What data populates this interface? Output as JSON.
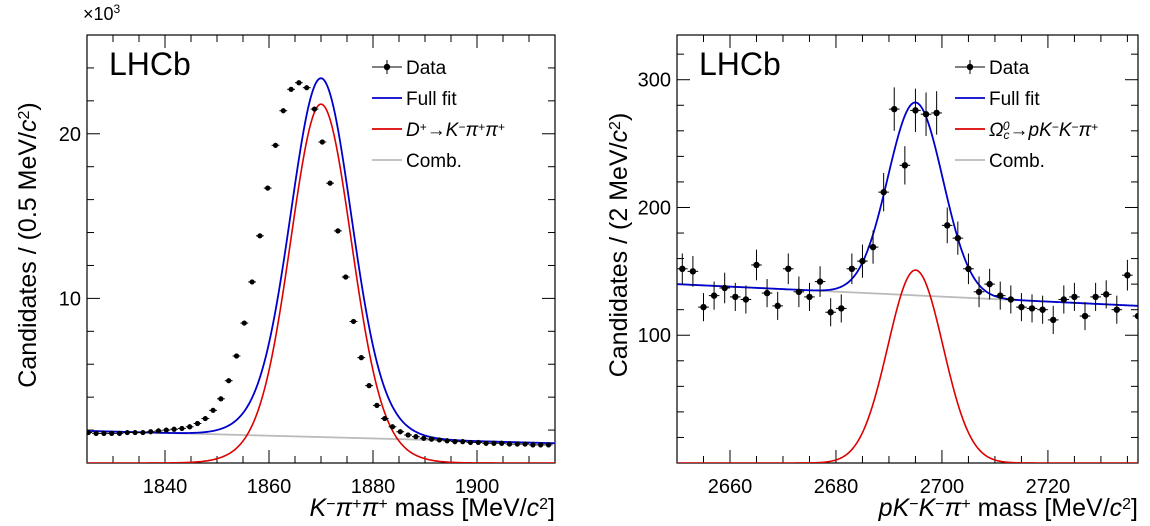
{
  "chart_data": [
    {
      "type": "line",
      "experiment_label": "LHCb",
      "multiplier_label": "×10",
      "multiplier_exp": "3",
      "ylabel_parts": [
        "Candidates / (0.5 MeV/",
        "c",
        "2",
        ")"
      ],
      "xlabel_parts": [
        {
          "t": "K",
          "s": "italic"
        },
        {
          "t": "−",
          "s": "sup"
        },
        {
          "t": "π",
          "s": "italic"
        },
        {
          "t": "+",
          "s": "sup"
        },
        {
          "t": "π",
          "s": "italic"
        },
        {
          "t": "+",
          "s": "sup"
        },
        {
          "t": " mass [MeV/",
          "s": "normal"
        },
        {
          "t": "c",
          "s": "italic"
        },
        {
          "t": "2",
          "s": "sup"
        },
        {
          "t": "]",
          "s": "normal"
        }
      ],
      "xlim": [
        1825,
        1915
      ],
      "ylim": [
        0,
        26000
      ],
      "xticks": [
        1840,
        1860,
        1880,
        1900
      ],
      "yticks": [
        10000,
        20000
      ],
      "ytick_labels": [
        "10",
        "20"
      ],
      "legend_position": "top-right",
      "legend": [
        {
          "kind": "data",
          "parts": [
            {
              "t": "Data",
              "s": "normal"
            }
          ]
        },
        {
          "kind": "line",
          "color": "#0000cc",
          "parts": [
            {
              "t": "Full fit",
              "s": "normal"
            }
          ]
        },
        {
          "kind": "line",
          "color": "#dd0000",
          "parts": [
            {
              "t": "D",
              "s": "italic"
            },
            {
              "t": "+",
              "s": "sup"
            },
            {
              "t": "→",
              "s": "normal"
            },
            {
              "t": "K",
              "s": "italic"
            },
            {
              "t": "−",
              "s": "sup"
            },
            {
              "t": "π",
              "s": "italic"
            },
            {
              "t": "+",
              "s": "sup"
            },
            {
              "t": "π",
              "s": "italic"
            },
            {
              "t": "+",
              "s": "sup"
            }
          ]
        },
        {
          "kind": "line",
          "color": "#bbbbbb",
          "parts": [
            {
              "t": "Comb.",
              "s": "normal"
            }
          ]
        }
      ],
      "data_points": {
        "x": [
          1825.25,
          1826.75,
          1828.25,
          1829.75,
          1831.25,
          1832.75,
          1834.25,
          1835.75,
          1837.25,
          1838.75,
          1840.25,
          1841.75,
          1843.25,
          1844.75,
          1846.25,
          1847.75,
          1849.25,
          1850.75,
          1852.25,
          1853.75,
          1855.25,
          1856.75,
          1858.25,
          1859.75,
          1861.25,
          1862.75,
          1864.25,
          1865.75,
          1867.25,
          1868.75,
          1870.25,
          1871.75,
          1873.25,
          1874.75,
          1876.25,
          1877.75,
          1879.25,
          1880.75,
          1882.25,
          1883.75,
          1885.25,
          1886.75,
          1888.25,
          1889.75,
          1891.25,
          1892.75,
          1894.25,
          1895.75,
          1897.25,
          1898.75,
          1900.25,
          1901.75,
          1903.25,
          1904.75,
          1906.25,
          1907.75,
          1909.25,
          1910.75,
          1912.25,
          1913.75
        ],
        "y": [
          1850,
          1800,
          1800,
          1800,
          1800,
          1850,
          1850,
          1850,
          1900,
          1950,
          2000,
          2050,
          2100,
          2200,
          2400,
          2700,
          3200,
          3900,
          5000,
          6500,
          8500,
          11000,
          13800,
          16700,
          19300,
          21400,
          22700,
          23100,
          22800,
          21500,
          19500,
          17000,
          14100,
          11300,
          8600,
          6400,
          4700,
          3500,
          2700,
          2200,
          1900,
          1700,
          1600,
          1500,
          1450,
          1400,
          1350,
          1300,
          1300,
          1250,
          1250,
          1200,
          1200,
          1200,
          1150,
          1150,
          1150,
          1100,
          1100,
          1100
        ],
        "y_err": 150
      },
      "full_fit": {
        "comb_start": 1950,
        "comb_end": 1200,
        "peak_mean": 1870,
        "peak_amp": 21800,
        "core_sigma": 5.5,
        "tail_sigma": 8.0,
        "tail_frac": 0.25
      },
      "signal": {
        "mean": 1870,
        "amp": 21800,
        "core_sigma": 5.5,
        "tail_sigma": 8.0,
        "tail_frac": 0.25
      },
      "combinatorial": {
        "y_at_xmin": 1950,
        "y_at_xmax": 1200
      }
    },
    {
      "type": "line",
      "experiment_label": "LHCb",
      "ylabel_parts": [
        "Candidates / (2 MeV/",
        "c",
        "2",
        ")"
      ],
      "xlabel_parts": [
        {
          "t": "p",
          "s": "italic"
        },
        {
          "t": "K",
          "s": "italic"
        },
        {
          "t": "−",
          "s": "sup"
        },
        {
          "t": "K",
          "s": "italic"
        },
        {
          "t": "−",
          "s": "sup"
        },
        {
          "t": "π",
          "s": "italic"
        },
        {
          "t": "+",
          "s": "sup"
        },
        {
          "t": " mass [MeV/",
          "s": "normal"
        },
        {
          "t": "c",
          "s": "italic"
        },
        {
          "t": "2",
          "s": "sup"
        },
        {
          "t": "]",
          "s": "normal"
        }
      ],
      "xlim": [
        2650,
        2737
      ],
      "ylim": [
        0,
        335
      ],
      "xticks": [
        2660,
        2680,
        2700,
        2720
      ],
      "yticks": [
        100,
        200,
        300
      ],
      "ytick_labels": [
        "100",
        "200",
        "300"
      ],
      "legend_position": "top-right",
      "legend": [
        {
          "kind": "data",
          "parts": [
            {
              "t": "Data",
              "s": "normal"
            }
          ]
        },
        {
          "kind": "line",
          "color": "#0000cc",
          "parts": [
            {
              "t": "Full fit",
              "s": "normal"
            }
          ]
        },
        {
          "kind": "line",
          "color": "#dd0000",
          "parts": [
            {
              "t": "Ω",
              "s": "italic"
            },
            {
              "t": "c",
              "s": "subital"
            },
            {
              "t": "0",
              "s": "supital"
            },
            {
              "t": "→",
              "s": "normal"
            },
            {
              "t": "p",
              "s": "italic"
            },
            {
              "t": "K",
              "s": "italic"
            },
            {
              "t": "−",
              "s": "sup"
            },
            {
              "t": "K",
              "s": "italic"
            },
            {
              "t": "−",
              "s": "sup"
            },
            {
              "t": "π",
              "s": "italic"
            },
            {
              "t": "+",
              "s": "sup"
            }
          ]
        },
        {
          "kind": "line",
          "color": "#bbbbbb",
          "parts": [
            {
              "t": "Comb.",
              "s": "normal"
            }
          ]
        }
      ],
      "data_points": {
        "x": [
          2651,
          2653,
          2655,
          2657,
          2659,
          2661,
          2663,
          2665,
          2667,
          2669,
          2671,
          2673,
          2675,
          2677,
          2679,
          2681,
          2683,
          2685,
          2687,
          2689,
          2691,
          2693,
          2695,
          2697,
          2699,
          2701,
          2703,
          2705,
          2707,
          2709,
          2711,
          2713,
          2715,
          2717,
          2719,
          2721,
          2723,
          2725,
          2727,
          2729,
          2731,
          2733,
          2735,
          2737
        ],
        "y": [
          152,
          150,
          122,
          131,
          137,
          130,
          128,
          155,
          133,
          123,
          152,
          134,
          130,
          142,
          118,
          121,
          152,
          158,
          169,
          212,
          277,
          233,
          276,
          273,
          274,
          186,
          176,
          152,
          134,
          140,
          131,
          128,
          122,
          121,
          120,
          112,
          128,
          130,
          115,
          130,
          132,
          120,
          147,
          115
        ],
        "y_err": [
          12,
          12,
          11,
          11,
          12,
          11,
          11,
          12,
          11,
          11,
          12,
          12,
          11,
          12,
          11,
          11,
          12,
          13,
          13,
          15,
          17,
          15,
          17,
          17,
          17,
          14,
          13,
          12,
          12,
          12,
          11,
          11,
          11,
          11,
          11,
          11,
          11,
          11,
          11,
          11,
          11,
          11,
          12,
          11
        ]
      },
      "full_fit": {
        "comb_start": 140,
        "comb_end": 123,
        "peak_mean": 2695,
        "peak_amp": 151,
        "sigma": 5.2
      },
      "signal": {
        "mean": 2695,
        "amp": 151,
        "sigma": 5.2
      },
      "combinatorial": {
        "y_at_xmin": 140,
        "y_at_xmax": 123
      }
    }
  ]
}
